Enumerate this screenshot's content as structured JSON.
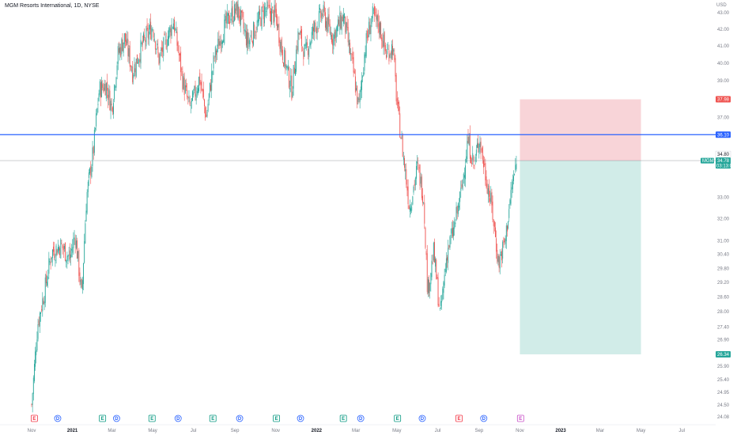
{
  "header": {
    "title": "MGM Resorts International, 1D, NYSE",
    "currency": "USD"
  },
  "colors": {
    "up": "#26a69a",
    "down": "#ef5350",
    "hline": "#2962ff",
    "last": "#787b86",
    "stop_zone": "#f7cdd1",
    "target_zone": "#c9e9e4",
    "text": "#131722",
    "axis_text": "#787b86",
    "earnings": "#089981",
    "dividend": "#2962ff",
    "split_earnings": "#f23645",
    "future_earnings": "#c850c8"
  },
  "chart_data": {
    "type": "candlestick",
    "title": "MGM Resorts International, 1D, NYSE",
    "ylabel": "USD",
    "ylim": [
      24.0,
      43.4
    ],
    "y_scale": "log",
    "y_ticks": [
      "43.00",
      "42.00",
      "41.00",
      "40.00",
      "39.00",
      "37.00",
      "33.00",
      "32.00",
      "31.00",
      "30.40",
      "29.80",
      "29.20",
      "28.60",
      "28.00",
      "27.40",
      "26.90",
      "25.90",
      "25.40",
      "24.95",
      "24.50",
      "24.08"
    ],
    "x_ticks": [
      {
        "label": "Nov",
        "date": "2020-11-01",
        "year": false
      },
      {
        "label": "2021",
        "date": "2021-01-01",
        "year": true
      },
      {
        "label": "Mar",
        "date": "2021-03-01",
        "year": false
      },
      {
        "label": "May",
        "date": "2021-05-01",
        "year": false
      },
      {
        "label": "Jul",
        "date": "2021-07-01",
        "year": false
      },
      {
        "label": "Sep",
        "date": "2021-09-01",
        "year": false
      },
      {
        "label": "Nov",
        "date": "2021-11-01",
        "year": false
      },
      {
        "label": "2022",
        "date": "2022-01-01",
        "year": true
      },
      {
        "label": "Mar",
        "date": "2022-03-01",
        "year": false
      },
      {
        "label": "May",
        "date": "2022-05-01",
        "year": false
      },
      {
        "label": "Jul",
        "date": "2022-07-01",
        "year": false
      },
      {
        "label": "Sep",
        "date": "2022-09-01",
        "year": false
      },
      {
        "label": "Nov",
        "date": "2022-11-01",
        "year": false
      },
      {
        "label": "2023",
        "date": "2023-01-01",
        "year": true
      },
      {
        "label": "Mar",
        "date": "2023-03-01",
        "year": false
      },
      {
        "label": "May",
        "date": "2023-05-01",
        "year": false
      },
      {
        "label": "Jul",
        "date": "2023-07-01",
        "year": false
      }
    ],
    "close_path": [
      [
        "2020-11-01",
        24.5
      ],
      [
        "2020-11-10",
        27.5
      ],
      [
        "2020-11-20",
        28.8
      ],
      [
        "2020-12-01",
        30.5
      ],
      [
        "2020-12-15",
        30.8
      ],
      [
        "2020-12-28",
        30.2
      ],
      [
        "2021-01-05",
        31.3
      ],
      [
        "2021-01-15",
        28.6
      ],
      [
        "2021-01-22",
        33.0
      ],
      [
        "2021-02-01",
        35.2
      ],
      [
        "2021-02-10",
        38.5
      ],
      [
        "2021-02-20",
        38.8
      ],
      [
        "2021-03-01",
        37.5
      ],
      [
        "2021-03-10",
        40.5
      ],
      [
        "2021-03-20",
        41.5
      ],
      [
        "2021-04-01",
        39.5
      ],
      [
        "2021-04-15",
        41.0
      ],
      [
        "2021-05-01",
        42.2
      ],
      [
        "2021-05-10",
        40.2
      ],
      [
        "2021-05-20",
        41.2
      ],
      [
        "2021-06-01",
        42.5
      ],
      [
        "2021-06-15",
        39.0
      ],
      [
        "2021-06-25",
        37.5
      ],
      [
        "2021-07-01",
        38.0
      ],
      [
        "2021-07-10",
        39.2
      ],
      [
        "2021-07-20",
        37.0
      ],
      [
        "2021-08-01",
        40.3
      ],
      [
        "2021-08-15",
        42.0
      ],
      [
        "2021-08-25",
        42.8
      ],
      [
        "2021-09-05",
        43.2
      ],
      [
        "2021-09-20",
        41.2
      ],
      [
        "2021-10-01",
        42.0
      ],
      [
        "2021-10-15",
        43.2
      ],
      [
        "2021-11-01",
        42.8
      ],
      [
        "2021-11-10",
        40.8
      ],
      [
        "2021-11-25",
        38.5
      ],
      [
        "2021-12-05",
        41.8
      ],
      [
        "2021-12-15",
        40.5
      ],
      [
        "2021-12-28",
        42.0
      ],
      [
        "2022-01-10",
        43.0
      ],
      [
        "2022-01-25",
        41.5
      ],
      [
        "2022-02-10",
        42.8
      ],
      [
        "2022-02-25",
        39.5
      ],
      [
        "2022-03-05",
        37.5
      ],
      [
        "2022-03-15",
        41.0
      ],
      [
        "2022-03-25",
        42.8
      ],
      [
        "2022-04-05",
        42.2
      ],
      [
        "2022-04-15",
        40.5
      ],
      [
        "2022-04-25",
        41.0
      ],
      [
        "2022-05-01",
        37.8
      ],
      [
        "2022-05-10",
        35.2
      ],
      [
        "2022-05-20",
        32.5
      ],
      [
        "2022-06-01",
        34.5
      ],
      [
        "2022-06-10",
        33.0
      ],
      [
        "2022-06-16",
        28.8
      ],
      [
        "2022-06-25",
        30.5
      ],
      [
        "2022-07-05",
        27.8
      ],
      [
        "2022-07-15",
        30.5
      ],
      [
        "2022-07-25",
        31.5
      ],
      [
        "2022-08-05",
        33.2
      ],
      [
        "2022-08-15",
        35.8
      ],
      [
        "2022-08-25",
        34.5
      ],
      [
        "2022-09-01",
        36.0
      ],
      [
        "2022-09-10",
        34.2
      ],
      [
        "2022-09-20",
        32.5
      ],
      [
        "2022-09-30",
        30.0
      ],
      [
        "2022-10-10",
        31.0
      ],
      [
        "2022-10-20",
        33.5
      ],
      [
        "2022-10-28",
        34.78
      ]
    ],
    "horizontal_line": {
      "value": 36.1,
      "label": "36.10"
    },
    "last_price": {
      "value": 34.78,
      "label": "34.78",
      "ticker": "MGM",
      "countdown": "03:13:00"
    },
    "prev_label": "34.80",
    "position": {
      "start": "2022-11-01",
      "end": "2023-05-01",
      "entry": 34.78,
      "stop": 37.98,
      "stop_label": "37.98",
      "target": 26.34,
      "target_label": "26.34"
    },
    "events": [
      {
        "type": "E",
        "date": "2020-11-05",
        "kind": "split_earnings"
      },
      {
        "type": "D",
        "date": "2020-12-10",
        "kind": "dividend"
      },
      {
        "type": "E",
        "date": "2021-02-15",
        "kind": "earnings"
      },
      {
        "type": "D",
        "date": "2021-03-08",
        "kind": "dividend"
      },
      {
        "type": "E",
        "date": "2021-04-30",
        "kind": "earnings"
      },
      {
        "type": "D",
        "date": "2021-06-08",
        "kind": "dividend"
      },
      {
        "type": "E",
        "date": "2021-07-30",
        "kind": "earnings"
      },
      {
        "type": "D",
        "date": "2021-09-08",
        "kind": "dividend"
      },
      {
        "type": "E",
        "date": "2021-11-02",
        "kind": "earnings"
      },
      {
        "type": "D",
        "date": "2021-12-08",
        "kind": "dividend"
      },
      {
        "type": "E",
        "date": "2022-02-10",
        "kind": "earnings"
      },
      {
        "type": "D",
        "date": "2022-03-08",
        "kind": "dividend"
      },
      {
        "type": "E",
        "date": "2022-05-02",
        "kind": "earnings"
      },
      {
        "type": "D",
        "date": "2022-06-08",
        "kind": "dividend"
      },
      {
        "type": "E",
        "date": "2022-08-02",
        "kind": "split_earnings"
      },
      {
        "type": "D",
        "date": "2022-09-08",
        "kind": "dividend"
      },
      {
        "type": "E",
        "date": "2022-11-02",
        "kind": "future_earnings"
      }
    ]
  }
}
